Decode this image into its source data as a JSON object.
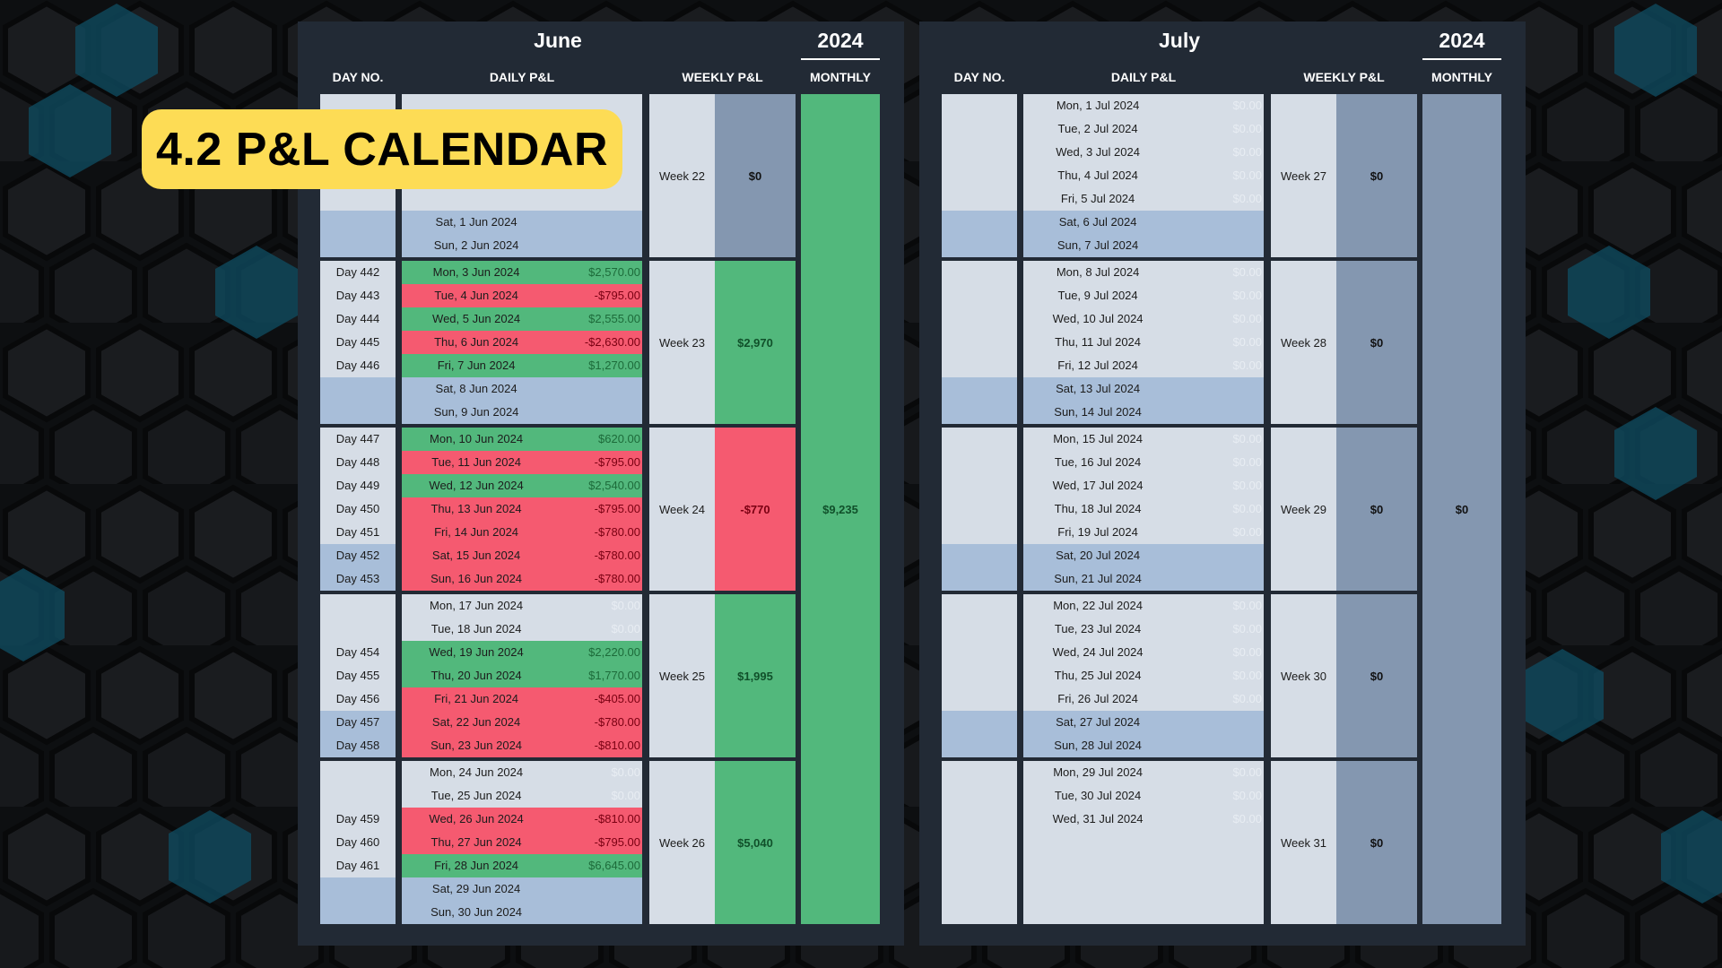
{
  "badge": {
    "title": "4.2 P&L CALENDAR",
    "color": "#fddc55"
  },
  "colors": {
    "win": "#52b87c",
    "loss": "#f55a70",
    "weekday": "#d6dde6",
    "weekend": "#a8bed9",
    "neutral": "#8497b0",
    "panel": "#222a35"
  },
  "headers": {
    "day_no": "DAY NO.",
    "daily": "DAILY P&L",
    "weekly": "WEEKLY P&L",
    "monthly": "MONTHLY"
  },
  "months": [
    {
      "name": "June",
      "year": "2024",
      "monthly_total": "$9,235",
      "monthly_status": "win",
      "weeks": [
        {
          "label": "Week 22",
          "total": "$0",
          "status": "slate",
          "days": [
            {
              "day_no": "",
              "date": "",
              "pnl": "",
              "status": "blank"
            },
            {
              "day_no": "",
              "date": "",
              "pnl": "",
              "status": "blank"
            },
            {
              "day_no": "",
              "date": "",
              "pnl": "",
              "status": "blank"
            },
            {
              "day_no": "",
              "date": "",
              "pnl": "",
              "status": "blank"
            },
            {
              "day_no": "",
              "date": "",
              "pnl": "",
              "status": "blank"
            },
            {
              "day_no": "",
              "date": "Sat, 1 Jun 2024",
              "pnl": "",
              "status": "weekend"
            },
            {
              "day_no": "",
              "date": "Sun, 2 Jun 2024",
              "pnl": "",
              "status": "weekend"
            }
          ]
        },
        {
          "label": "Week 23",
          "total": "$2,970",
          "status": "win",
          "days": [
            {
              "day_no": "Day 442",
              "date": "Mon, 3 Jun 2024",
              "pnl": "$2,570.00",
              "status": "win"
            },
            {
              "day_no": "Day 443",
              "date": "Tue, 4 Jun 2024",
              "pnl": "-$795.00",
              "status": "loss"
            },
            {
              "day_no": "Day 444",
              "date": "Wed, 5 Jun 2024",
              "pnl": "$2,555.00",
              "status": "win"
            },
            {
              "day_no": "Day 445",
              "date": "Thu, 6 Jun 2024",
              "pnl": "-$2,630.00",
              "status": "loss"
            },
            {
              "day_no": "Day 446",
              "date": "Fri, 7 Jun 2024",
              "pnl": "$1,270.00",
              "status": "win"
            },
            {
              "day_no": "",
              "date": "Sat, 8 Jun 2024",
              "pnl": "",
              "status": "weekend"
            },
            {
              "day_no": "",
              "date": "Sun, 9 Jun 2024",
              "pnl": "",
              "status": "weekend"
            }
          ]
        },
        {
          "label": "Week 24",
          "total": "-$770",
          "status": "loss",
          "days": [
            {
              "day_no": "Day 447",
              "date": "Mon, 10 Jun 2024",
              "pnl": "$620.00",
              "status": "win"
            },
            {
              "day_no": "Day 448",
              "date": "Tue, 11 Jun 2024",
              "pnl": "-$795.00",
              "status": "loss"
            },
            {
              "day_no": "Day 449",
              "date": "Wed, 12 Jun 2024",
              "pnl": "$2,540.00",
              "status": "win"
            },
            {
              "day_no": "Day 450",
              "date": "Thu, 13 Jun 2024",
              "pnl": "-$795.00",
              "status": "loss"
            },
            {
              "day_no": "Day 451",
              "date": "Fri, 14 Jun 2024",
              "pnl": "-$780.00",
              "status": "loss"
            },
            {
              "day_no": "Day 452",
              "date": "Sat, 15 Jun 2024",
              "pnl": "-$780.00",
              "status": "loss",
              "weekend": true
            },
            {
              "day_no": "Day 453",
              "date": "Sun, 16 Jun 2024",
              "pnl": "-$780.00",
              "status": "loss",
              "weekend": true
            }
          ]
        },
        {
          "label": "Week 25",
          "total": "$1,995",
          "status": "win",
          "days": [
            {
              "day_no": "",
              "date": "Mon, 17 Jun 2024",
              "pnl": "$0.00",
              "status": "none"
            },
            {
              "day_no": "",
              "date": "Tue, 18 Jun 2024",
              "pnl": "$0.00",
              "status": "none"
            },
            {
              "day_no": "Day 454",
              "date": "Wed, 19 Jun 2024",
              "pnl": "$2,220.00",
              "status": "win"
            },
            {
              "day_no": "Day 455",
              "date": "Thu, 20 Jun 2024",
              "pnl": "$1,770.00",
              "status": "win"
            },
            {
              "day_no": "Day 456",
              "date": "Fri, 21 Jun 2024",
              "pnl": "-$405.00",
              "status": "loss"
            },
            {
              "day_no": "Day 457",
              "date": "Sat, 22 Jun 2024",
              "pnl": "-$780.00",
              "status": "loss",
              "weekend": true
            },
            {
              "day_no": "Day 458",
              "date": "Sun, 23 Jun 2024",
              "pnl": "-$810.00",
              "status": "loss",
              "weekend": true
            }
          ]
        },
        {
          "label": "Week 26",
          "total": "$5,040",
          "status": "win",
          "days": [
            {
              "day_no": "",
              "date": "Mon, 24 Jun 2024",
              "pnl": "$0.00",
              "status": "none"
            },
            {
              "day_no": "",
              "date": "Tue, 25 Jun 2024",
              "pnl": "$0.00",
              "status": "none"
            },
            {
              "day_no": "Day 459",
              "date": "Wed, 26 Jun 2024",
              "pnl": "-$810.00",
              "status": "loss"
            },
            {
              "day_no": "Day 460",
              "date": "Thu, 27 Jun 2024",
              "pnl": "-$795.00",
              "status": "loss"
            },
            {
              "day_no": "Day 461",
              "date": "Fri, 28 Jun 2024",
              "pnl": "$6,645.00",
              "status": "win"
            },
            {
              "day_no": "",
              "date": "Sat, 29 Jun 2024",
              "pnl": "",
              "status": "weekend"
            },
            {
              "day_no": "",
              "date": "Sun, 30 Jun 2024",
              "pnl": "",
              "status": "weekend"
            }
          ]
        }
      ]
    },
    {
      "name": "July",
      "year": "2024",
      "monthly_total": "$0",
      "monthly_status": "slate",
      "weeks": [
        {
          "label": "Week 27",
          "total": "$0",
          "status": "slate",
          "days": [
            {
              "day_no": "",
              "date": "Mon, 1 Jul 2024",
              "pnl": "$0.00",
              "status": "none"
            },
            {
              "day_no": "",
              "date": "Tue, 2 Jul 2024",
              "pnl": "$0.00",
              "status": "none"
            },
            {
              "day_no": "",
              "date": "Wed, 3 Jul 2024",
              "pnl": "$0.00",
              "status": "none"
            },
            {
              "day_no": "",
              "date": "Thu, 4 Jul 2024",
              "pnl": "$0.00",
              "status": "none"
            },
            {
              "day_no": "",
              "date": "Fri, 5 Jul 2024",
              "pnl": "$0.00",
              "status": "none"
            },
            {
              "day_no": "",
              "date": "Sat, 6 Jul 2024",
              "pnl": "",
              "status": "weekend"
            },
            {
              "day_no": "",
              "date": "Sun, 7 Jul 2024",
              "pnl": "",
              "status": "weekend"
            }
          ]
        },
        {
          "label": "Week 28",
          "total": "$0",
          "status": "slate",
          "days": [
            {
              "day_no": "",
              "date": "Mon, 8 Jul 2024",
              "pnl": "$0.00",
              "status": "none"
            },
            {
              "day_no": "",
              "date": "Tue, 9 Jul 2024",
              "pnl": "$0.00",
              "status": "none"
            },
            {
              "day_no": "",
              "date": "Wed, 10 Jul 2024",
              "pnl": "$0.00",
              "status": "none"
            },
            {
              "day_no": "",
              "date": "Thu, 11 Jul 2024",
              "pnl": "$0.00",
              "status": "none"
            },
            {
              "day_no": "",
              "date": "Fri, 12 Jul 2024",
              "pnl": "$0.00",
              "status": "none"
            },
            {
              "day_no": "",
              "date": "Sat, 13 Jul 2024",
              "pnl": "",
              "status": "weekend"
            },
            {
              "day_no": "",
              "date": "Sun, 14 Jul 2024",
              "pnl": "",
              "status": "weekend"
            }
          ]
        },
        {
          "label": "Week 29",
          "total": "$0",
          "status": "slate",
          "days": [
            {
              "day_no": "",
              "date": "Mon, 15 Jul 2024",
              "pnl": "$0.00",
              "status": "none"
            },
            {
              "day_no": "",
              "date": "Tue, 16 Jul 2024",
              "pnl": "$0.00",
              "status": "none"
            },
            {
              "day_no": "",
              "date": "Wed, 17 Jul 2024",
              "pnl": "$0.00",
              "status": "none"
            },
            {
              "day_no": "",
              "date": "Thu, 18 Jul 2024",
              "pnl": "$0.00",
              "status": "none"
            },
            {
              "day_no": "",
              "date": "Fri, 19 Jul 2024",
              "pnl": "$0.00",
              "status": "none"
            },
            {
              "day_no": "",
              "date": "Sat, 20 Jul 2024",
              "pnl": "",
              "status": "weekend"
            },
            {
              "day_no": "",
              "date": "Sun, 21 Jul 2024",
              "pnl": "",
              "status": "weekend"
            }
          ]
        },
        {
          "label": "Week 30",
          "total": "$0",
          "status": "slate",
          "days": [
            {
              "day_no": "",
              "date": "Mon, 22 Jul 2024",
              "pnl": "$0.00",
              "status": "none"
            },
            {
              "day_no": "",
              "date": "Tue, 23 Jul 2024",
              "pnl": "$0.00",
              "status": "none"
            },
            {
              "day_no": "",
              "date": "Wed, 24 Jul 2024",
              "pnl": "$0.00",
              "status": "none"
            },
            {
              "day_no": "",
              "date": "Thu, 25 Jul 2024",
              "pnl": "$0.00",
              "status": "none"
            },
            {
              "day_no": "",
              "date": "Fri, 26 Jul 2024",
              "pnl": "$0.00",
              "status": "none"
            },
            {
              "day_no": "",
              "date": "Sat, 27 Jul 2024",
              "pnl": "",
              "status": "weekend"
            },
            {
              "day_no": "",
              "date": "Sun, 28 Jul 2024",
              "pnl": "",
              "status": "weekend"
            }
          ]
        },
        {
          "label": "Week 31",
          "total": "$0",
          "status": "slate",
          "days": [
            {
              "day_no": "",
              "date": "Mon, 29 Jul 2024",
              "pnl": "$0.00",
              "status": "none"
            },
            {
              "day_no": "",
              "date": "Tue, 30 Jul 2024",
              "pnl": "$0.00",
              "status": "none"
            },
            {
              "day_no": "",
              "date": "Wed, 31 Jul 2024",
              "pnl": "$0.00",
              "status": "none"
            },
            {
              "day_no": "",
              "date": "",
              "pnl": "",
              "status": "blank"
            },
            {
              "day_no": "",
              "date": "",
              "pnl": "",
              "status": "blank"
            },
            {
              "day_no": "",
              "date": "",
              "pnl": "",
              "status": "blank"
            },
            {
              "day_no": "",
              "date": "",
              "pnl": "",
              "status": "blank"
            }
          ]
        }
      ]
    }
  ]
}
